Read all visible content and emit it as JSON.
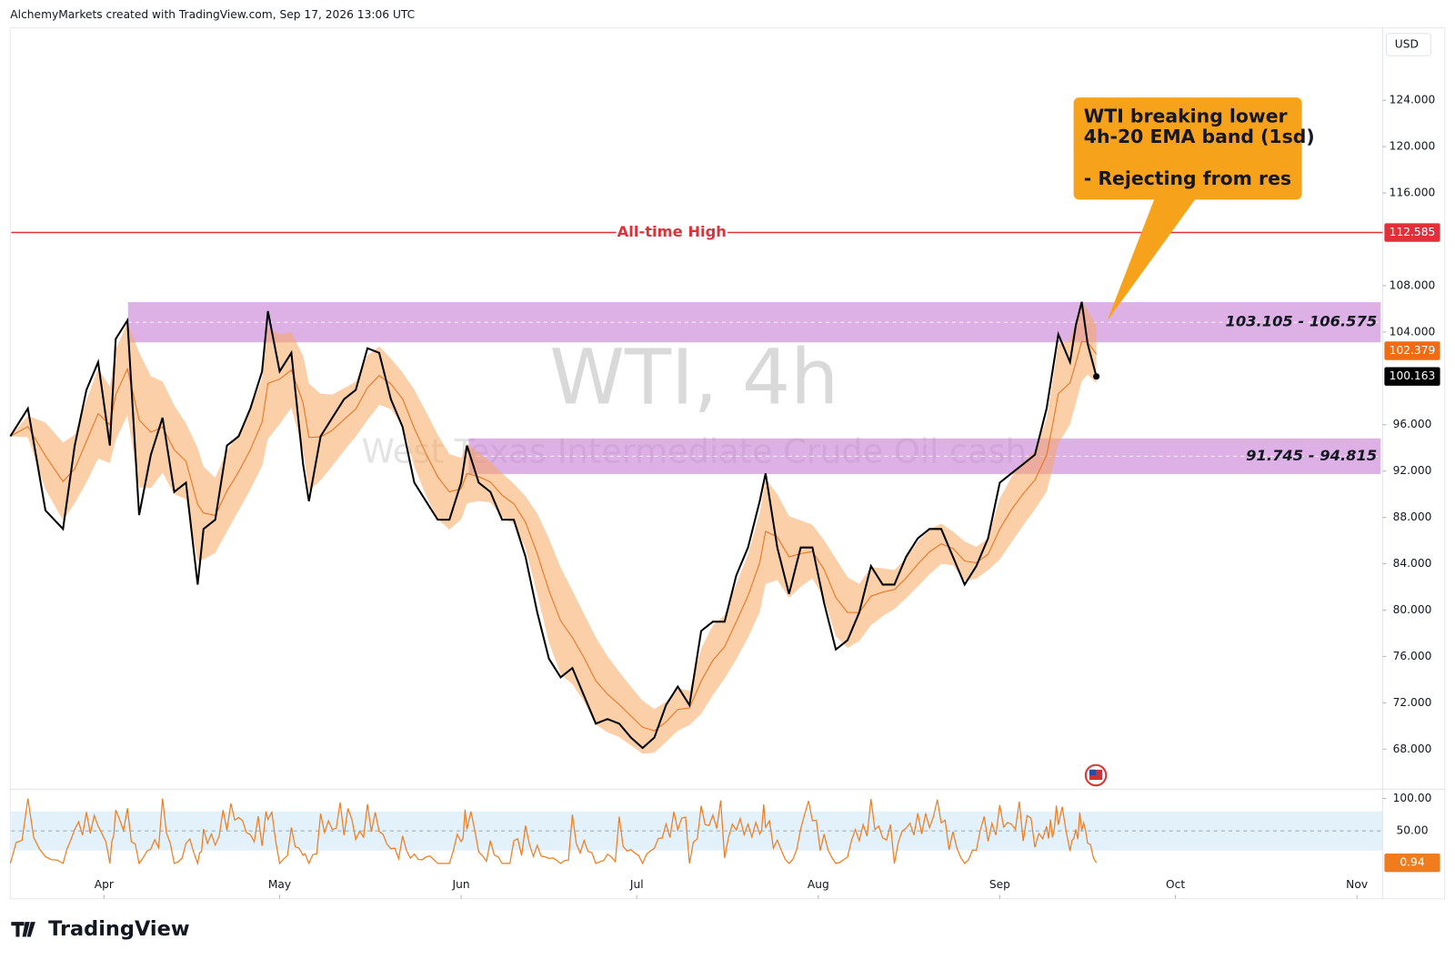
{
  "credit": "AlchemyMarkets created with TradingView.com, Sep 17, 2026 13:06 UTC",
  "currency": "USD",
  "brand": "TradingView",
  "watermark": {
    "symbol": "WTI, 4h",
    "name": "West Texas Intermediate Crude Oil cash"
  },
  "annotation": {
    "lines": [
      "WTI breaking lower",
      "4h-20 EMA band (1sd)",
      "- Rejecting from res"
    ]
  },
  "chart_data": {
    "type": "line",
    "color": "#000000",
    "x": [
      -16,
      -13,
      -10,
      -7,
      -5,
      -3,
      -1,
      1,
      2,
      4,
      6,
      8,
      10,
      12,
      14,
      16,
      17,
      19,
      21,
      23,
      25,
      27,
      28,
      30,
      32,
      34,
      35,
      37,
      39,
      41,
      43,
      45,
      47,
      49,
      51,
      53,
      55,
      57,
      59,
      61,
      62,
      64,
      66,
      68,
      70,
      72,
      74,
      76,
      78,
      80,
      82,
      84,
      86,
      88,
      90,
      92,
      94,
      96,
      98,
      100,
      102,
      104,
      106,
      108,
      110,
      112,
      113,
      115,
      117,
      119,
      121,
      123,
      125,
      127,
      129,
      131,
      133,
      135,
      137,
      139,
      141,
      143,
      145,
      147,
      149,
      151,
      153,
      155,
      157,
      159,
      161,
      162,
      163,
      165,
      166,
      167,
      168,
      169.5
    ],
    "values": [
      95,
      97.4,
      88.6,
      87,
      94.2,
      99,
      101.4,
      94.2,
      103.4,
      105,
      88.2,
      93.4,
      96.6,
      90.2,
      91,
      82.2,
      87,
      87.8,
      94.2,
      95,
      97.4,
      100.6,
      105.8,
      100.6,
      102.2,
      92.6,
      89.4,
      95,
      96.6,
      98.2,
      99,
      102.6,
      102.2,
      98.2,
      95.8,
      91,
      89.4,
      87.8,
      87.8,
      91,
      94.2,
      91,
      90.2,
      87.8,
      87.8,
      84.6,
      79.8,
      75.8,
      74.2,
      75,
      72.6,
      70.2,
      70.6,
      70.2,
      69,
      68.1,
      69,
      71.8,
      73.4,
      71.8,
      78.2,
      79,
      79,
      83,
      85.4,
      89.4,
      91.8,
      85.4,
      81.4,
      85.4,
      85.4,
      80.6,
      76.6,
      77.4,
      79.8,
      83.8,
      82.2,
      82.2,
      84.6,
      86.2,
      87,
      87,
      84.6,
      82.2,
      83.8,
      86.2,
      91,
      91.8,
      92.6,
      93.4,
      97.4,
      100.6,
      103.8,
      101.4,
      104.6,
      106.6,
      103,
      100.163
    ],
    "last_price": 100.163,
    "ema_last": 102.379,
    "ath": {
      "value": 112.585,
      "label": "All-time High",
      "color": "#e0303a"
    },
    "zones": [
      {
        "low": 103.105,
        "high": 106.575,
        "start": 4.1,
        "label": "103.105 - 106.575"
      },
      {
        "low": 91.745,
        "high": 94.815,
        "start": 62.3,
        "label": "91.745 - 94.815"
      }
    ],
    "xlim": [
      -15.85,
      218.38
    ],
    "xticks": [
      {
        "value": 0,
        "label": "Apr"
      },
      {
        "value": 30,
        "label": "May"
      },
      {
        "value": 61,
        "label": "Jun"
      },
      {
        "value": 91,
        "label": "Jul"
      },
      {
        "value": 122,
        "label": "Aug"
      },
      {
        "value": 153,
        "label": "Sep"
      },
      {
        "value": 183,
        "label": "Oct"
      },
      {
        "value": 214,
        "label": "Nov"
      }
    ],
    "ylim": [
      64.545,
      130.25
    ],
    "yticks": [
      {
        "value": 124,
        "label": "124.000"
      },
      {
        "value": 120,
        "label": "120.000"
      },
      {
        "value": 116,
        "label": "116.000"
      },
      {
        "value": 108,
        "label": "108.000"
      },
      {
        "value": 104,
        "label": "104.000"
      },
      {
        "value": 96,
        "label": "96.000"
      },
      {
        "value": 92,
        "label": "92.000"
      },
      {
        "value": 88,
        "label": "88.000"
      },
      {
        "value": 84,
        "label": "84.000"
      },
      {
        "value": 80,
        "label": "80.000"
      },
      {
        "value": 76,
        "label": "76.000"
      },
      {
        "value": 72,
        "label": "72.000"
      },
      {
        "value": 68,
        "label": "68.000"
      }
    ],
    "oscillator": {
      "ylim": [
        -14.3,
        114.3
      ],
      "yticks": [
        {
          "value": 100,
          "label": "100.00"
        },
        {
          "value": 50,
          "label": "50.00"
        }
      ],
      "band": [
        20,
        80
      ],
      "last": 0.94,
      "color": "#f07c1e"
    }
  }
}
